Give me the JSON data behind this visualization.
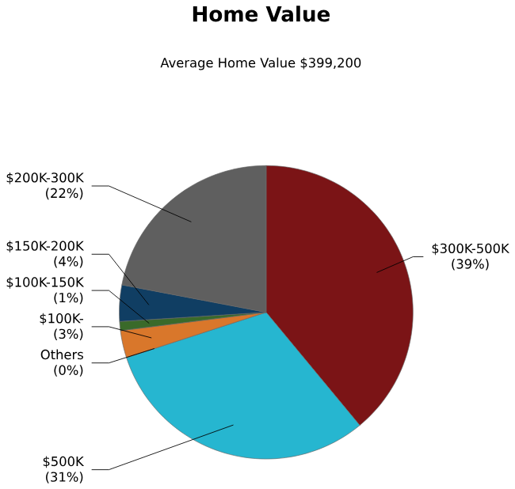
{
  "chart_data": {
    "type": "pie",
    "title": "Home Value",
    "subtitle": "Average Home Value  $399,200",
    "categories": [
      "$300K-500K",
      "$500K",
      "Others",
      "$100K-",
      "$100K-150K",
      "$150K-200K",
      "$200K-300K"
    ],
    "values": [
      39,
      31,
      0,
      3,
      1,
      4,
      22
    ],
    "value_labels": [
      "(39%)",
      "(31%)",
      "(0%)",
      "(3%)",
      "(1%)",
      "(4%)",
      "(22%)"
    ],
    "colors": [
      "#7b1416",
      "#26b6d0",
      "#9a9a9a",
      "#d9772b",
      "#3a6a2a",
      "#103e63",
      "#5f5f5f"
    ]
  }
}
